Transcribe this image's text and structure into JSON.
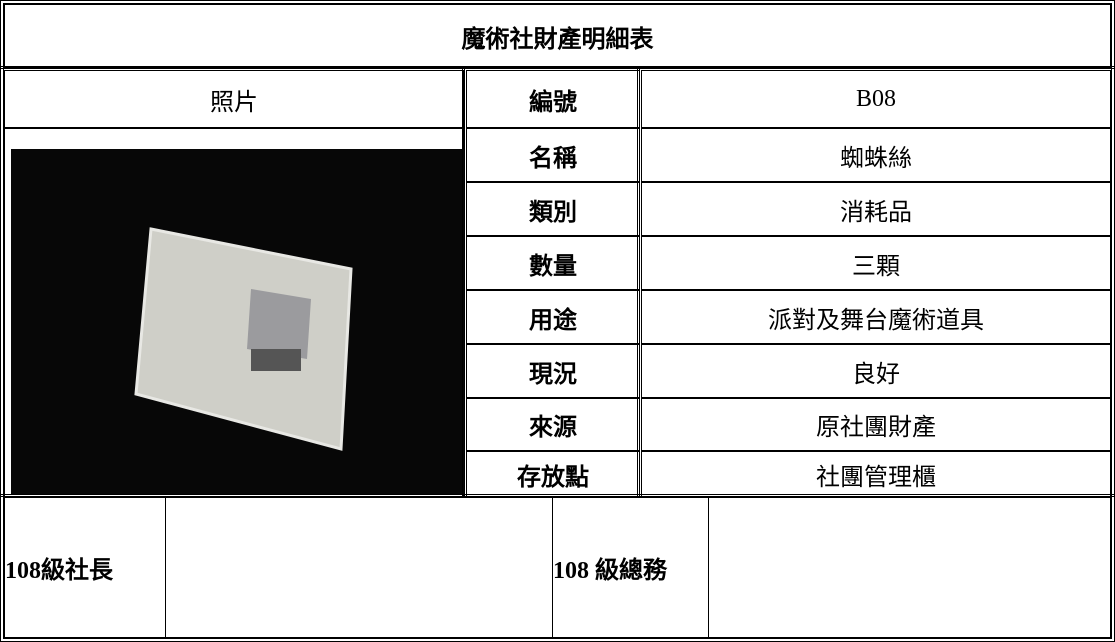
{
  "header": {
    "title": "魔術社財產明細表"
  },
  "photo": {
    "label": "照片"
  },
  "fields": [
    {
      "label": "編號",
      "value": "B08"
    },
    {
      "label": "名稱",
      "value": "蜘蛛絲"
    },
    {
      "label": "類別",
      "value": "消耗品"
    },
    {
      "label": "數量",
      "value": "三顆"
    },
    {
      "label": "用途",
      "value": "派對及舞台魔術道具"
    },
    {
      "label": "現況",
      "value": "良好"
    },
    {
      "label": "來源",
      "value": "原社團財產"
    },
    {
      "label": "存放點",
      "value": "社團管理櫃"
    }
  ],
  "signatures": [
    {
      "label": "108級社長"
    },
    {
      "label": "108 級總務"
    }
  ]
}
